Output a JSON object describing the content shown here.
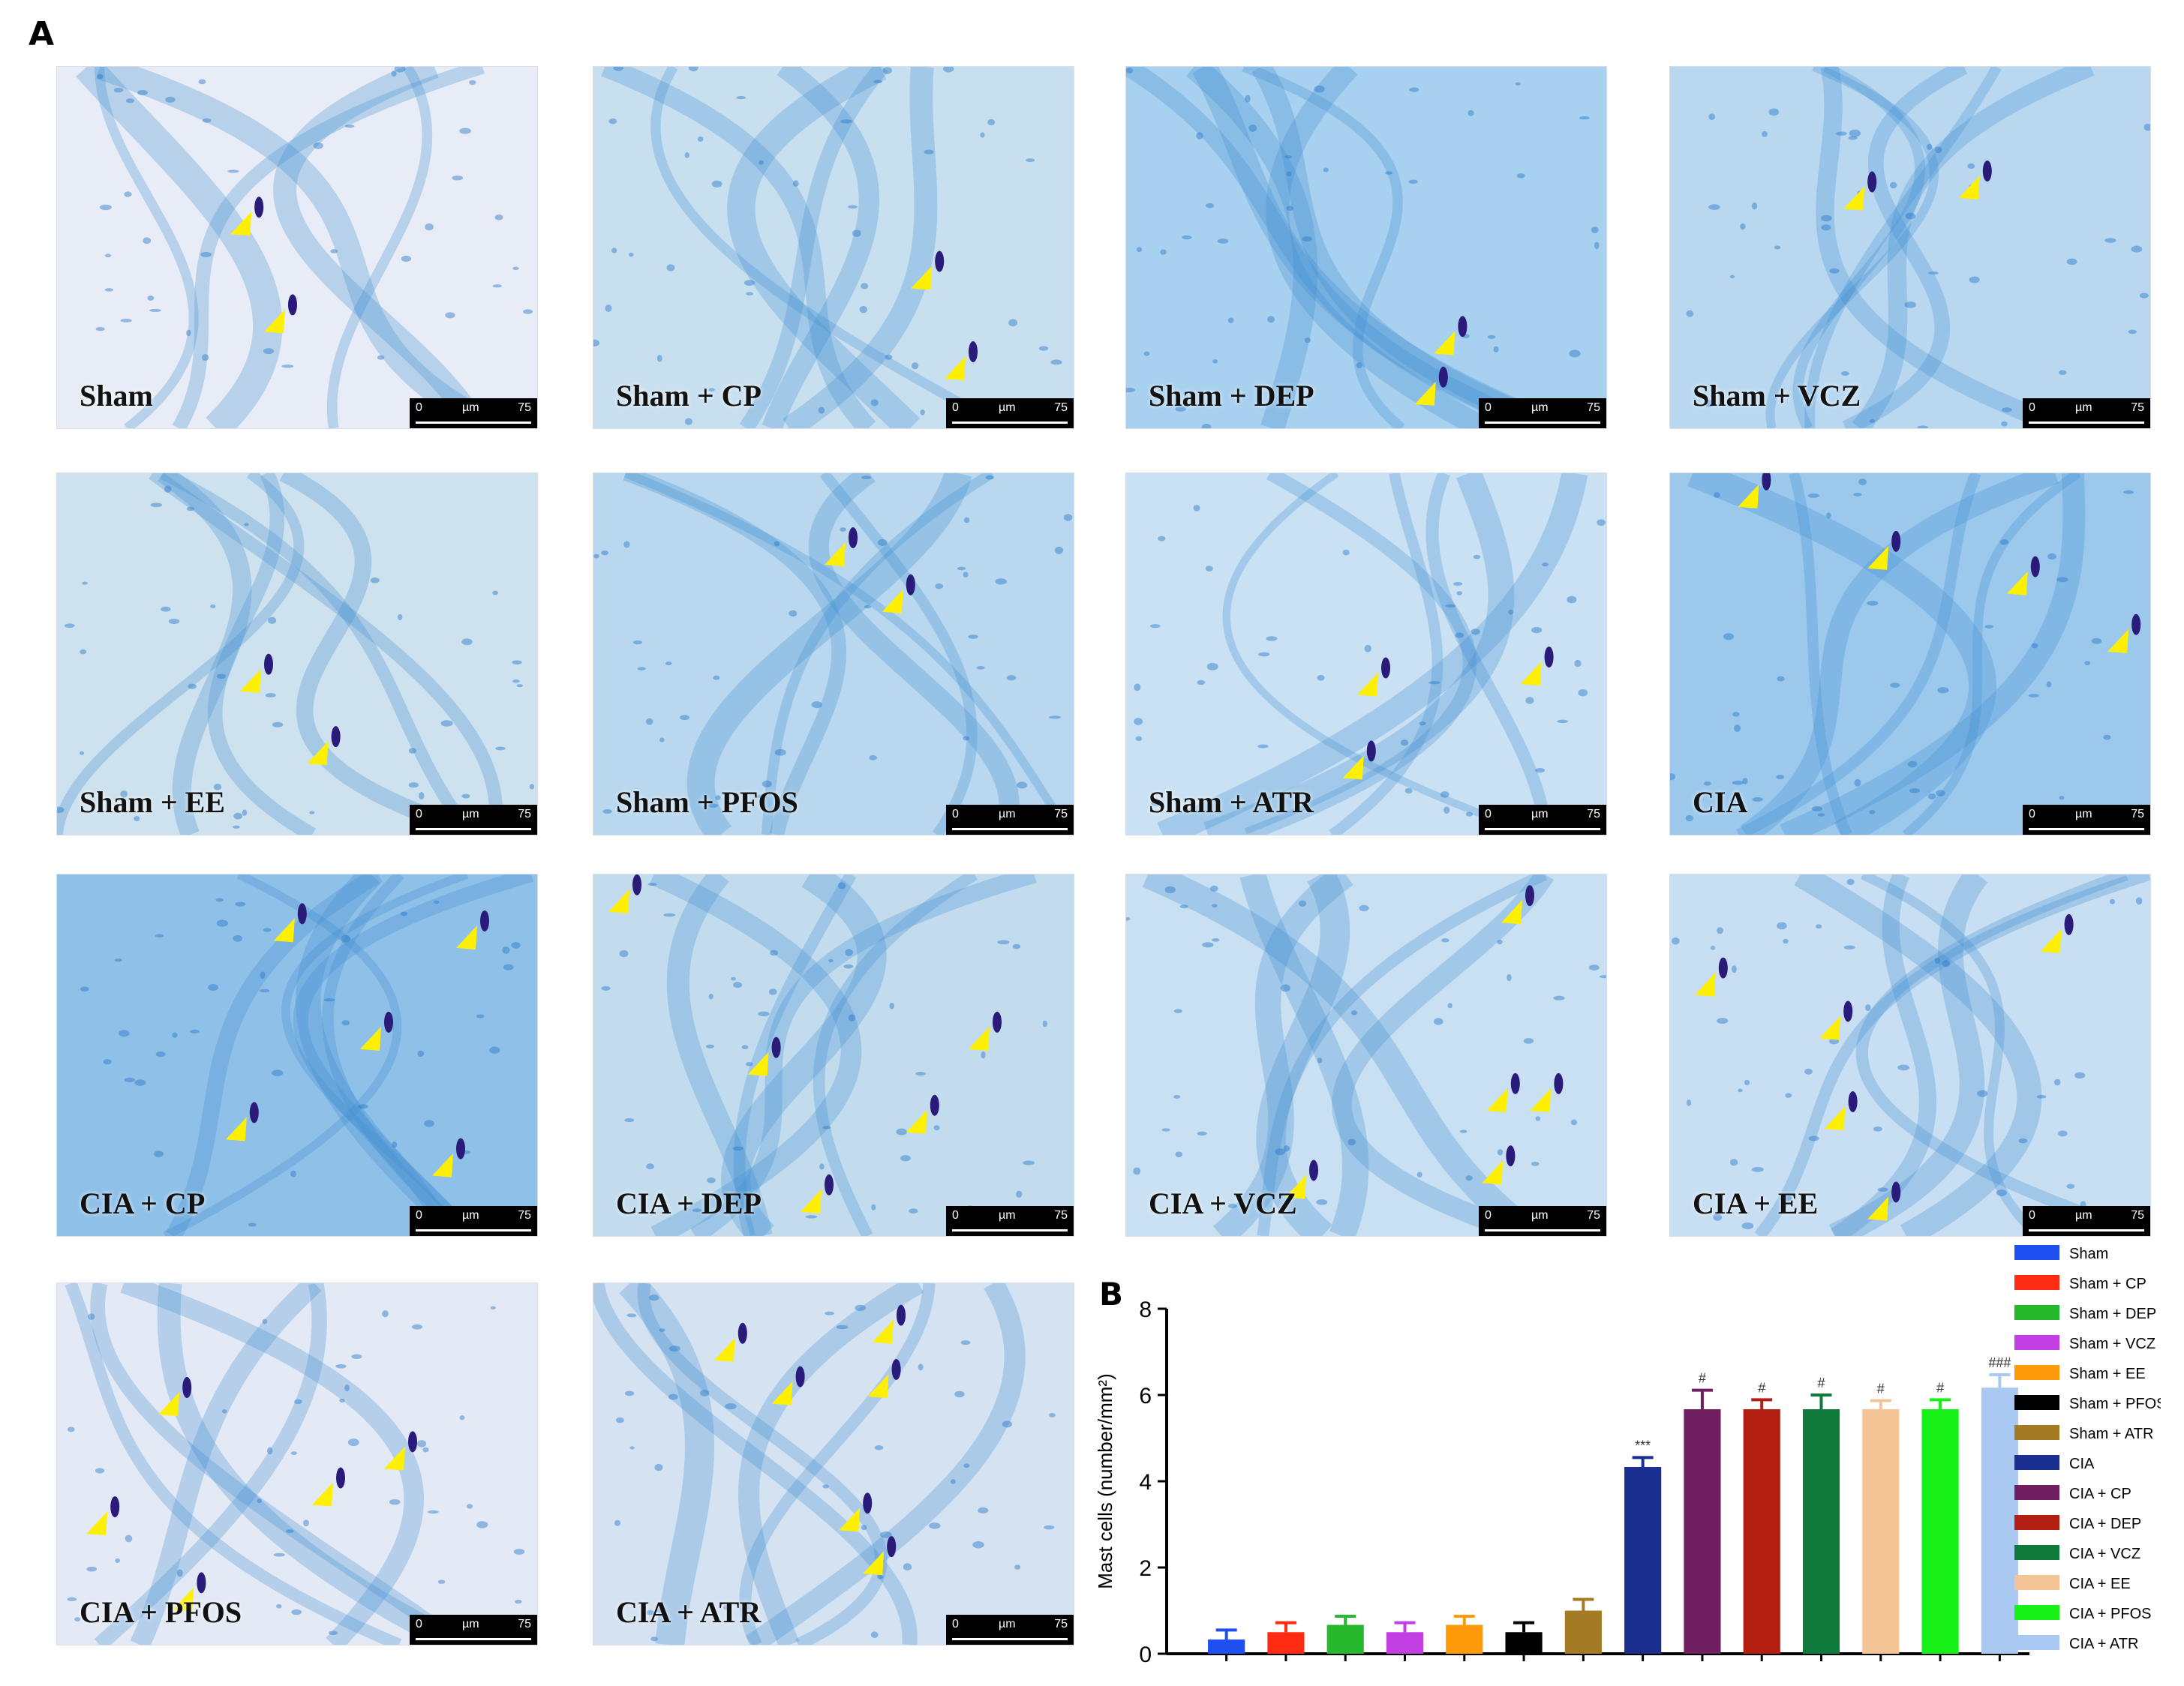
{
  "figure": {
    "panel_a_letter": "A",
    "panel_b_letter": "B"
  },
  "micrographs": [
    {
      "label": "Sham",
      "tint": "#e8ecf6",
      "cells": [
        [
          0.38,
          0.43
        ],
        [
          0.45,
          0.7
        ]
      ]
    },
    {
      "label": "Sham + CP",
      "tint": "#c8dff0",
      "cells": [
        [
          0.68,
          0.58
        ],
        [
          0.75,
          0.83
        ]
      ]
    },
    {
      "label": "Sham + DEP",
      "tint": "#a8d0ef",
      "cells": [
        [
          0.66,
          0.76
        ],
        [
          0.62,
          0.9
        ]
      ]
    },
    {
      "label": "Sham + VCZ",
      "tint": "#b9d8f0",
      "cells": [
        [
          0.38,
          0.36
        ],
        [
          0.62,
          0.33
        ]
      ]
    },
    {
      "label": "Sham + EE",
      "tint": "#cde1ee",
      "cells": [
        [
          0.4,
          0.57
        ],
        [
          0.54,
          0.77
        ]
      ]
    },
    {
      "label": "Sham + PFOS",
      "tint": "#b9d7ee",
      "cells": [
        [
          0.5,
          0.22
        ],
        [
          0.62,
          0.35
        ]
      ]
    },
    {
      "label": "Sham + ATR",
      "tint": "#c9e1f3",
      "cells": [
        [
          0.5,
          0.58
        ],
        [
          0.47,
          0.81
        ],
        [
          0.84,
          0.55
        ]
      ]
    },
    {
      "label": "CIA",
      "tint": "#9cc8ec",
      "cells": [
        [
          0.16,
          0.06
        ],
        [
          0.43,
          0.23
        ],
        [
          0.72,
          0.3
        ],
        [
          0.93,
          0.46
        ]
      ]
    },
    {
      "label": "CIA + CP",
      "tint": "#8fc0e8",
      "cells": [
        [
          0.47,
          0.15
        ],
        [
          0.85,
          0.17
        ],
        [
          0.65,
          0.45
        ],
        [
          0.37,
          0.7
        ],
        [
          0.8,
          0.8
        ]
      ]
    },
    {
      "label": "CIA + DEP",
      "tint": "#c2dcee",
      "cells": [
        [
          0.34,
          0.52
        ],
        [
          0.8,
          0.45
        ],
        [
          0.67,
          0.68
        ],
        [
          0.45,
          0.9
        ],
        [
          0.05,
          0.07
        ]
      ]
    },
    {
      "label": "CIA + VCZ",
      "tint": "#c8e0f1",
      "cells": [
        [
          0.8,
          0.1
        ],
        [
          0.77,
          0.62
        ],
        [
          0.86,
          0.62
        ],
        [
          0.76,
          0.82
        ],
        [
          0.35,
          0.86
        ]
      ]
    },
    {
      "label": "CIA + EE",
      "tint": "#c8def2",
      "cells": [
        [
          0.07,
          0.3
        ],
        [
          0.79,
          0.18
        ],
        [
          0.33,
          0.42
        ],
        [
          0.34,
          0.67
        ],
        [
          0.43,
          0.92
        ]
      ]
    },
    {
      "label": "CIA + PFOS",
      "tint": "#e3e9f5",
      "cells": [
        [
          0.23,
          0.33
        ],
        [
          0.7,
          0.48
        ],
        [
          0.55,
          0.58
        ],
        [
          0.08,
          0.66
        ],
        [
          0.26,
          0.87
        ]
      ]
    },
    {
      "label": "CIA + ATR",
      "tint": "#d4e2f2",
      "cells": [
        [
          0.27,
          0.18
        ],
        [
          0.6,
          0.13
        ],
        [
          0.39,
          0.3
        ],
        [
          0.59,
          0.28
        ],
        [
          0.53,
          0.65
        ],
        [
          0.58,
          0.77
        ]
      ]
    }
  ],
  "scalebar": {
    "start": "0",
    "unit": "µm",
    "end": "75"
  },
  "marker_color": "#ffef00",
  "chart_data": {
    "type": "bar",
    "ylabel": "Mast cells (number/mm²)",
    "ylim": [
      0,
      8
    ],
    "yticks": [
      "0",
      "2",
      "4",
      "6",
      "8"
    ],
    "legend_position": "right",
    "categories": [
      "Sham",
      "Sham + CP",
      "Sham + DEP",
      "Sham + VCZ",
      "Sham + EE",
      "Sham + PFOS",
      "Sham + ATR",
      "CIA",
      "CIA + CP",
      "CIA + DEP",
      "CIA + VCZ",
      "CIA + EE",
      "CIA + PFOS",
      "CIA + ATR"
    ],
    "values": [
      0.33,
      0.5,
      0.67,
      0.5,
      0.67,
      0.5,
      1.0,
      4.33,
      5.67,
      5.67,
      5.67,
      5.67,
      5.67,
      6.17
    ],
    "errors": [
      0.22,
      0.22,
      0.2,
      0.22,
      0.2,
      0.22,
      0.26,
      0.22,
      0.44,
      0.22,
      0.33,
      0.2,
      0.22,
      0.3
    ],
    "significance": [
      "",
      "",
      "",
      "",
      "",
      "",
      "",
      "***",
      "#",
      "#",
      "#",
      "#",
      "#",
      "###"
    ],
    "colors": [
      "#1f4ff0",
      "#ff2a12",
      "#28b82d",
      "#c33ee3",
      "#ff9a0a",
      "#000000",
      "#a47a25",
      "#1b2f91",
      "#6f1f60",
      "#b31e12",
      "#0f7a3c",
      "#f4c396",
      "#17f117",
      "#a9c9f3"
    ]
  }
}
